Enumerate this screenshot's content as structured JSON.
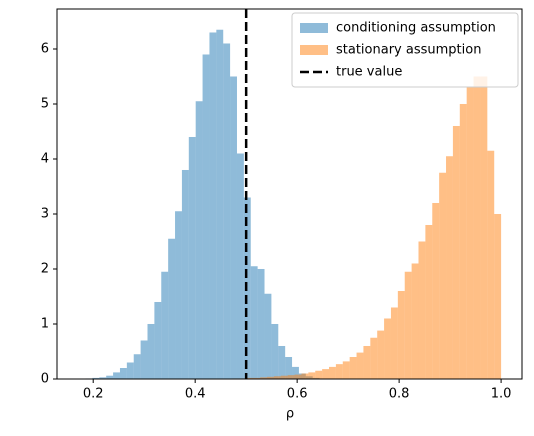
{
  "chart_data": {
    "type": "histogram",
    "xlabel": "ρ",
    "series": [
      {
        "name": "conditioning assumption",
        "color": "#1f77b4",
        "alpha": 0.5,
        "bins": [
          0.1445,
          0.158,
          0.1715,
          0.185,
          0.1985,
          0.212,
          0.2255,
          0.239,
          0.2525,
          0.266,
          0.2795,
          0.293,
          0.3065,
          0.32,
          0.3335,
          0.347,
          0.3605,
          0.374,
          0.3875,
          0.401,
          0.4145,
          0.428,
          0.4415,
          0.455,
          0.4685,
          0.482,
          0.4955,
          0.509,
          0.5225,
          0.536,
          0.5495,
          0.563,
          0.5765,
          0.59,
          0.6035,
          0.617,
          0.6305,
          0.644
        ],
        "values": [
          0.001,
          0.002,
          0.005,
          0.01,
          0.02,
          0.03,
          0.06,
          0.12,
          0.2,
          0.3,
          0.45,
          0.7,
          1.0,
          1.4,
          1.95,
          2.55,
          3.05,
          3.8,
          4.4,
          5.05,
          5.9,
          6.3,
          6.35,
          6.1,
          5.5,
          4.1,
          3.3,
          2.05,
          2.0,
          1.55,
          1.0,
          0.6,
          0.4,
          0.22,
          0.1,
          0.05,
          0.02
        ]
      },
      {
        "name": "stationary assumption",
        "color": "#ff7f0e",
        "alpha": 0.5,
        "bins": [
          0.46,
          0.4735,
          0.487,
          0.5005,
          0.514,
          0.5275,
          0.541,
          0.5545,
          0.568,
          0.5815,
          0.595,
          0.6085,
          0.622,
          0.6355,
          0.649,
          0.6625,
          0.676,
          0.6895,
          0.703,
          0.7165,
          0.73,
          0.7435,
          0.757,
          0.7705,
          0.784,
          0.7975,
          0.811,
          0.8245,
          0.838,
          0.8515,
          0.865,
          0.8785,
          0.892,
          0.9055,
          0.919,
          0.9325,
          0.946,
          0.9595,
          0.973,
          0.9865,
          1.0
        ],
        "values": [
          0.005,
          0.01,
          0.01,
          0.02,
          0.02,
          0.03,
          0.04,
          0.05,
          0.06,
          0.07,
          0.08,
          0.1,
          0.12,
          0.15,
          0.18,
          0.22,
          0.27,
          0.32,
          0.4,
          0.48,
          0.6,
          0.75,
          0.88,
          1.1,
          1.3,
          1.6,
          1.95,
          2.1,
          2.5,
          2.8,
          3.2,
          3.75,
          4.05,
          4.6,
          5.0,
          5.3,
          5.5,
          5.5,
          4.15,
          3.0
        ]
      }
    ],
    "vline": {
      "name": "true value",
      "x": 0.5,
      "color": "#000000"
    },
    "xlim": [
      0.129,
      1.041
    ],
    "ylim": [
      0,
      6.727
    ],
    "xticks": [
      0.2,
      0.4,
      0.6,
      0.8,
      {
        "value": 1,
        "label": "1.0"
      }
    ],
    "yticks": [
      0,
      1,
      2,
      3,
      4,
      5,
      6
    ],
    "legend": "upper right"
  }
}
